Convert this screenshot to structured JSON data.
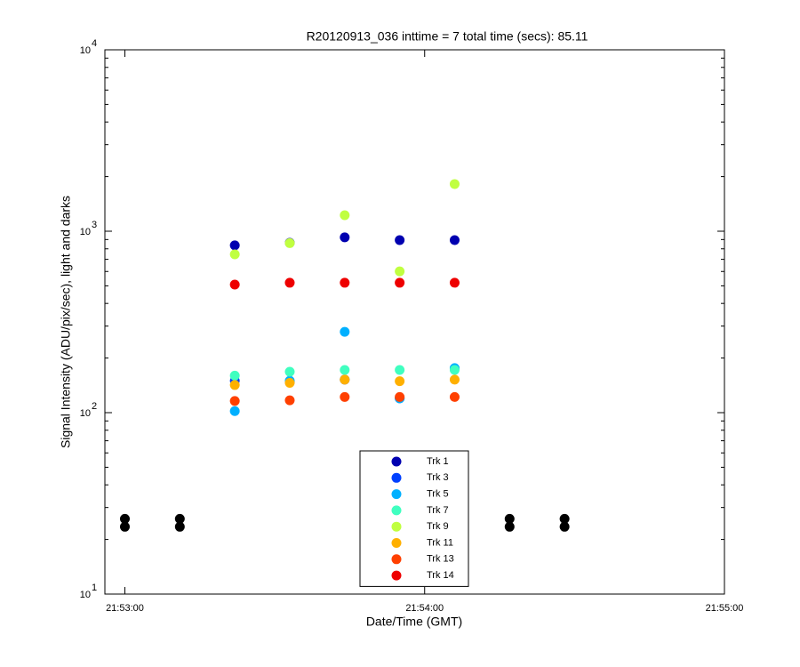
{
  "chart_data": {
    "type": "scatter",
    "title": "R20120913_036 inttime = 7 total time (secs): 85.11",
    "xlabel": "Date/Time (GMT)",
    "ylabel": "Signal Intensity (ADU/pix/sec), light and darks",
    "log_y": true,
    "xlim": [
      "21:52:56",
      "21:55:00"
    ],
    "xticks": [
      "21:53:00",
      "21:54:00",
      "21:55:00"
    ],
    "ylim": [
      10,
      10000
    ],
    "yticks": [
      {
        "value": 10,
        "label": "10",
        "exponent": "1"
      },
      {
        "value": 100,
        "label": "10",
        "exponent": "2"
      },
      {
        "value": 1000,
        "label": "10",
        "exponent": "3"
      },
      {
        "value": 10000,
        "label": "10",
        "exponent": "4"
      }
    ],
    "series": [
      {
        "name": "Trk 1",
        "color": "#0000b0",
        "x": [
          "21:53:22",
          "21:53:33",
          "21:53:44",
          "21:53:55",
          "21:54:06"
        ],
        "values": [
          836,
          863,
          925,
          893,
          893
        ]
      },
      {
        "name": "Trk 3",
        "color": "#0040ff",
        "x": [
          "21:53:22",
          "21:53:33",
          "21:53:44",
          "21:53:55",
          "21:54:06"
        ],
        "values": [
          150,
          148,
          152,
          120,
          175
        ]
      },
      {
        "name": "Trk 5",
        "color": "#00b0ff",
        "x": [
          "21:53:22",
          "21:53:33",
          "21:53:44",
          "21:53:55",
          "21:54:06"
        ],
        "values": [
          102,
          150,
          279,
          120,
          176
        ]
      },
      {
        "name": "Trk 7",
        "color": "#40ffc0",
        "x": [
          "21:53:22",
          "21:53:33",
          "21:53:44",
          "21:53:55",
          "21:54:06"
        ],
        "values": [
          160,
          168,
          172,
          172,
          172
        ]
      },
      {
        "name": "Trk 9",
        "color": "#c0ff40",
        "x": [
          "21:53:22",
          "21:53:33",
          "21:53:44",
          "21:53:55",
          "21:54:06"
        ],
        "values": [
          746,
          860,
          1225,
          601,
          1820
        ]
      },
      {
        "name": "Trk 11",
        "color": "#ffb000",
        "x": [
          "21:53:22",
          "21:53:33",
          "21:53:44",
          "21:53:55",
          "21:54:06"
        ],
        "values": [
          142,
          146,
          152,
          149,
          152
        ]
      },
      {
        "name": "Trk 13",
        "color": "#ff4000",
        "x": [
          "21:53:22",
          "21:53:33",
          "21:53:44",
          "21:53:55",
          "21:54:06"
        ],
        "values": [
          116,
          117,
          122,
          122,
          122
        ]
      },
      {
        "name": "Trk 14",
        "color": "#ee0000",
        "x": [
          "21:53:22",
          "21:53:33",
          "21:53:44",
          "21:53:55",
          "21:54:06"
        ],
        "values": [
          508,
          520,
          520,
          520,
          520
        ]
      },
      {
        "color": "#000000",
        "x": [
          "21:53:00",
          "21:53:00",
          "21:53:11",
          "21:53:11",
          "21:54:17",
          "21:54:17",
          "21:54:28",
          "21:54:28"
        ],
        "values": [
          23.5,
          26,
          23.5,
          26,
          23.5,
          26,
          23.5,
          26
        ]
      }
    ]
  }
}
